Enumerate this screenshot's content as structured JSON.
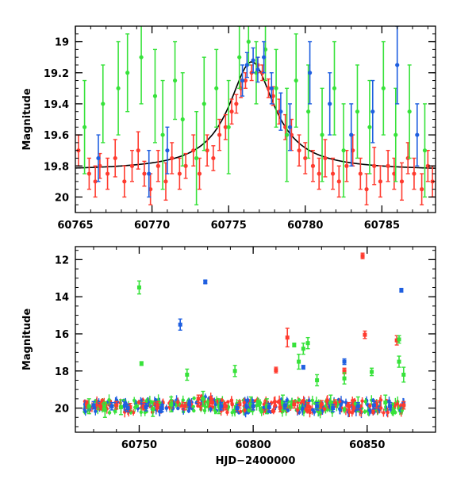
{
  "chart_data": [
    {
      "id": "top",
      "type": "scatter",
      "title": "",
      "xlabel": "",
      "ylabel": "Magnitude",
      "xlim": [
        60765,
        60788.5
      ],
      "ylim": [
        20.1,
        18.9
      ],
      "y_inverted": true,
      "xticks": [
        60765,
        60770,
        60775,
        60780,
        60785
      ],
      "yticks": [
        19,
        19.2,
        19.4,
        19.6,
        19.8,
        20
      ],
      "ytick_labels": [
        "19",
        "19.2",
        "19.4",
        "19.6",
        "19.8",
        "20"
      ],
      "grid": false,
      "series": [
        {
          "color": "#ff3b2f",
          "points": [
            [
              60765.2,
              19.7,
              0.1
            ],
            [
              60765.9,
              19.85,
              0.1
            ],
            [
              60766.3,
              19.9,
              0.1
            ],
            [
              60766.6,
              19.8,
              0.08
            ],
            [
              60767.1,
              19.85,
              0.1
            ],
            [
              60767.6,
              19.75,
              0.12
            ],
            [
              60768.2,
              19.9,
              0.1
            ],
            [
              60768.7,
              19.8,
              0.1
            ],
            [
              60769.1,
              19.7,
              0.12
            ],
            [
              60769.5,
              19.85,
              0.08
            ],
            [
              60769.9,
              19.95,
              0.1
            ],
            [
              60770.4,
              19.8,
              0.1
            ],
            [
              60770.9,
              19.9,
              0.12
            ],
            [
              60771.3,
              19.75,
              0.1
            ],
            [
              60771.8,
              19.85,
              0.1
            ],
            [
              60772.2,
              19.8,
              0.08
            ],
            [
              60772.7,
              19.7,
              0.1
            ],
            [
              60773.1,
              19.85,
              0.1
            ],
            [
              60773.6,
              19.7,
              0.1
            ],
            [
              60774.0,
              19.75,
              0.08
            ],
            [
              60774.4,
              19.6,
              0.1
            ],
            [
              60774.8,
              19.55,
              0.08
            ],
            [
              60775.2,
              19.45,
              0.08
            ],
            [
              60775.5,
              19.4,
              0.06
            ],
            [
              60775.8,
              19.3,
              0.06
            ],
            [
              60776.1,
              19.25,
              0.05
            ],
            [
              60776.5,
              19.2,
              0.05
            ],
            [
              60776.9,
              19.15,
              0.05
            ],
            [
              60777.2,
              19.2,
              0.05
            ],
            [
              60777.6,
              19.3,
              0.06
            ],
            [
              60777.9,
              19.35,
              0.06
            ],
            [
              60778.3,
              19.45,
              0.08
            ],
            [
              60778.7,
              19.55,
              0.08
            ],
            [
              60779.1,
              19.6,
              0.1
            ],
            [
              60779.6,
              19.7,
              0.1
            ],
            [
              60780.0,
              19.75,
              0.1
            ],
            [
              60780.5,
              19.8,
              0.1
            ],
            [
              60780.9,
              19.85,
              0.1
            ],
            [
              60781.3,
              19.75,
              0.12
            ],
            [
              60781.8,
              19.85,
              0.1
            ],
            [
              60782.2,
              19.9,
              0.1
            ],
            [
              60782.7,
              19.8,
              0.1
            ],
            [
              60783.1,
              19.7,
              0.1
            ],
            [
              60783.6,
              19.85,
              0.1
            ],
            [
              60784.0,
              19.95,
              0.1
            ],
            [
              60784.5,
              19.8,
              0.12
            ],
            [
              60784.9,
              19.9,
              0.1
            ],
            [
              60785.4,
              19.8,
              0.1
            ],
            [
              60785.8,
              19.85,
              0.1
            ],
            [
              60786.3,
              19.9,
              0.12
            ],
            [
              60786.7,
              19.75,
              0.1
            ],
            [
              60787.1,
              19.85,
              0.1
            ],
            [
              60787.6,
              19.95,
              0.1
            ],
            [
              60788.0,
              19.8,
              0.1
            ],
            [
              60788.3,
              19.9,
              0.1
            ]
          ]
        },
        {
          "color": "#37e23a",
          "points": [
            [
              60765.6,
              19.55,
              0.3
            ],
            [
              60766.8,
              19.4,
              0.25
            ],
            [
              60767.8,
              19.3,
              0.3
            ],
            [
              60768.4,
              19.2,
              0.25
            ],
            [
              60769.3,
              19.1,
              0.3
            ],
            [
              60770.2,
              19.35,
              0.3
            ],
            [
              60770.7,
              19.6,
              0.35
            ],
            [
              60771.5,
              19.25,
              0.25
            ],
            [
              60772.0,
              19.5,
              0.3
            ],
            [
              60772.9,
              19.75,
              0.3
            ],
            [
              60773.4,
              19.4,
              0.3
            ],
            [
              60774.2,
              19.3,
              0.25
            ],
            [
              60775.0,
              19.55,
              0.3
            ],
            [
              60775.7,
              19.1,
              0.2
            ],
            [
              60776.3,
              19.0,
              0.15
            ],
            [
              60776.8,
              19.2,
              0.2
            ],
            [
              60777.4,
              19.05,
              0.2
            ],
            [
              60778.1,
              19.3,
              0.25
            ],
            [
              60778.8,
              19.6,
              0.3
            ],
            [
              60779.4,
              19.25,
              0.3
            ],
            [
              60780.2,
              19.45,
              0.3
            ],
            [
              60781.1,
              19.6,
              0.3
            ],
            [
              60781.9,
              19.3,
              0.3
            ],
            [
              60782.5,
              19.7,
              0.3
            ],
            [
              60783.4,
              19.45,
              0.3
            ],
            [
              60784.2,
              19.55,
              0.3
            ],
            [
              60785.1,
              19.3,
              0.3
            ],
            [
              60785.9,
              19.6,
              0.3
            ],
            [
              60786.8,
              19.45,
              0.3
            ],
            [
              60787.8,
              19.7,
              0.3
            ]
          ]
        },
        {
          "color": "#1f5fe0",
          "points": [
            [
              60766.5,
              19.75,
              0.15
            ],
            [
              60769.8,
              19.85,
              0.15
            ],
            [
              60771.0,
              19.7,
              0.15
            ],
            [
              60775.9,
              19.25,
              0.1
            ],
            [
              60776.2,
              19.15,
              0.08
            ],
            [
              60776.6,
              19.12,
              0.08
            ],
            [
              60776.9,
              19.18,
              0.08
            ],
            [
              60777.3,
              19.1,
              0.1
            ],
            [
              60777.8,
              19.3,
              0.1
            ],
            [
              60778.4,
              19.45,
              0.12
            ],
            [
              60779.0,
              19.55,
              0.15
            ],
            [
              60780.3,
              19.2,
              0.2
            ],
            [
              60781.6,
              19.4,
              0.2
            ],
            [
              60783.0,
              19.6,
              0.2
            ],
            [
              60784.4,
              19.45,
              0.2
            ],
            [
              60786.0,
              19.15,
              0.25
            ],
            [
              60787.3,
              19.6,
              0.2
            ]
          ]
        }
      ],
      "model_curve": {
        "color": "#000000",
        "baseline": 19.83,
        "peak": 19.13,
        "t0": 60776.5,
        "width": 1.8
      }
    },
    {
      "id": "bottom",
      "type": "scatter",
      "title": "",
      "xlabel": "HJD−2400000",
      "ylabel": "Magnitude",
      "xlim": [
        60722,
        60880
      ],
      "ylim": [
        21.3,
        11.3
      ],
      "y_inverted": true,
      "xticks": [
        60750,
        60800,
        60850
      ],
      "yticks": [
        12,
        14,
        16,
        18,
        20
      ],
      "ytick_labels": [
        "12",
        "14",
        "16",
        "18",
        "20"
      ],
      "grid": false,
      "series": [
        {
          "color": "#ff3b2f",
          "points": [
            [
              60727,
              19.8,
              0.2
            ],
            [
              60733,
              19.9,
              0.2
            ],
            [
              60740,
              19.85,
              0.2
            ],
            [
              60746,
              19.95,
              0.2
            ],
            [
              60752,
              19.9,
              0.2
            ],
            [
              60758,
              19.85,
              0.2
            ],
            [
              60764,
              19.8,
              0.2
            ],
            [
              60770,
              19.9,
              0.2
            ],
            [
              60776,
              19.5,
              0.2
            ],
            [
              60782,
              19.7,
              0.2
            ],
            [
              60788,
              19.9,
              0.2
            ],
            [
              60794,
              19.8,
              0.2
            ],
            [
              60800,
              19.9,
              0.2
            ],
            [
              60806,
              19.85,
              0.2
            ],
            [
              60812,
              20.0,
              0.2
            ],
            [
              60815,
              16.2,
              0.5
            ],
            [
              60818,
              19.8,
              0.2
            ],
            [
              60824,
              19.9,
              0.2
            ],
            [
              60830,
              19.8,
              0.2
            ],
            [
              60836,
              19.75,
              0.2
            ],
            [
              60842,
              19.9,
              0.2
            ],
            [
              60848,
              11.8,
              0.15
            ],
            [
              60849,
              16.05,
              0.2
            ],
            [
              60854,
              19.8,
              0.2
            ],
            [
              60860,
              19.9,
              0.2
            ],
            [
              60863,
              16.35,
              0.25
            ],
            [
              60866,
              19.85,
              0.2
            ],
            [
              60810,
              17.95,
              0.15
            ],
            [
              60840,
              18.0,
              0.15
            ]
          ]
        },
        {
          "color": "#37e23a",
          "points": [
            [
              60728,
              19.9,
              0.4
            ],
            [
              60735,
              20.1,
              0.4
            ],
            [
              60742,
              19.95,
              0.4
            ],
            [
              60750,
              13.5,
              0.35
            ],
            [
              60751,
              17.6,
              0.1
            ],
            [
              60756,
              20.05,
              0.4
            ],
            [
              60764,
              19.8,
              0.4
            ],
            [
              60771,
              18.2,
              0.3
            ],
            [
              60778,
              19.5,
              0.4
            ],
            [
              60785,
              19.9,
              0.4
            ],
            [
              60792,
              18.0,
              0.3
            ],
            [
              60799,
              19.8,
              0.4
            ],
            [
              60806,
              19.9,
              0.4
            ],
            [
              60813,
              19.7,
              0.4
            ],
            [
              60818,
              16.6,
              0.1
            ],
            [
              60820,
              17.5,
              0.4
            ],
            [
              60822,
              16.8,
              0.3
            ],
            [
              60824,
              16.5,
              0.3
            ],
            [
              60828,
              18.5,
              0.3
            ],
            [
              60834,
              19.7,
              0.4
            ],
            [
              60840,
              18.4,
              0.3
            ],
            [
              60846,
              19.8,
              0.4
            ],
            [
              60852,
              18.05,
              0.2
            ],
            [
              60858,
              19.7,
              0.4
            ],
            [
              60864,
              17.5,
              0.3
            ],
            [
              60866,
              18.2,
              0.4
            ],
            [
              60864,
              16.3,
              0.2
            ]
          ]
        },
        {
          "color": "#1f5fe0",
          "points": [
            [
              60730,
              19.85,
              0.2
            ],
            [
              60738,
              19.9,
              0.2
            ],
            [
              60745,
              20.0,
              0.2
            ],
            [
              60753,
              19.95,
              0.2
            ],
            [
              60760,
              20.0,
              0.2
            ],
            [
              60768,
              15.5,
              0.3
            ],
            [
              60772,
              19.8,
              0.2
            ],
            [
              60779,
              13.2,
              0.1
            ],
            [
              60786,
              19.9,
              0.2
            ],
            [
              60793,
              20.0,
              0.2
            ],
            [
              60800,
              19.9,
              0.2
            ],
            [
              60807,
              19.95,
              0.2
            ],
            [
              60814,
              19.85,
              0.2
            ],
            [
              60822,
              17.8,
              0.1
            ],
            [
              60828,
              19.9,
              0.2
            ],
            [
              60835,
              20.0,
              0.2
            ],
            [
              60840,
              17.5,
              0.15
            ],
            [
              60846,
              19.9,
              0.2
            ],
            [
              60853,
              19.85,
              0.2
            ],
            [
              60860,
              19.9,
              0.2
            ],
            [
              60865,
              13.65,
              0.1
            ]
          ]
        }
      ],
      "noise_band": {
        "x_range": [
          60726,
          60867
        ],
        "center": 19.9,
        "spread": 0.35
      }
    }
  ]
}
